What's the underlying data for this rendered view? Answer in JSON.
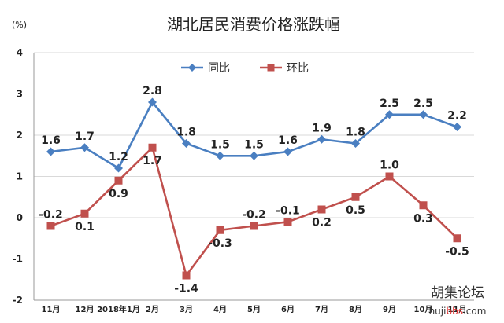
{
  "chart_data": {
    "type": "line",
    "title": "湖北居民消费价格涨跌幅",
    "unit_label": "(%)",
    "categories": [
      "11月",
      "12月",
      "2018年1月",
      "2月",
      "3月",
      "4月",
      "5月",
      "6月",
      "7月",
      "8月",
      "9月",
      "10月",
      "11月"
    ],
    "ylim": [
      -2,
      4
    ],
    "yticks": [
      "-2",
      "-1",
      "0",
      "1",
      "2",
      "3",
      "4"
    ],
    "grid": true,
    "legend_position": "top-center",
    "series": [
      {
        "name": "同比",
        "color": "#4a7fc1",
        "marker": "diamond",
        "values": [
          1.6,
          1.7,
          1.2,
          2.8,
          1.8,
          1.5,
          1.5,
          1.6,
          1.9,
          1.8,
          2.5,
          2.5,
          2.2
        ],
        "labels": [
          "1.6",
          "1.7",
          "1.2",
          "2.8",
          "1.8",
          "1.5",
          "1.5",
          "1.6",
          "1.9",
          "1.8",
          "2.5",
          "2.5",
          "2.2"
        ]
      },
      {
        "name": "环比",
        "color": "#c0504d",
        "marker": "square",
        "values": [
          -0.2,
          0.1,
          0.9,
          1.7,
          -1.4,
          -0.3,
          -0.2,
          -0.1,
          0.2,
          0.5,
          1.0,
          0.3,
          -0.5
        ],
        "labels": [
          "-0.2",
          "0.1",
          "0.9",
          "1.7",
          "-1.4",
          "-0.3",
          "-0.2",
          "-0.1",
          "0.2",
          "0.5",
          "1.0",
          "0.3",
          "-0.5"
        ]
      }
    ]
  },
  "watermark": {
    "main": "胡集论坛",
    "sub_prefix": "huji",
    "sub_accent": "bbs",
    "sub_suffix": ".com"
  }
}
